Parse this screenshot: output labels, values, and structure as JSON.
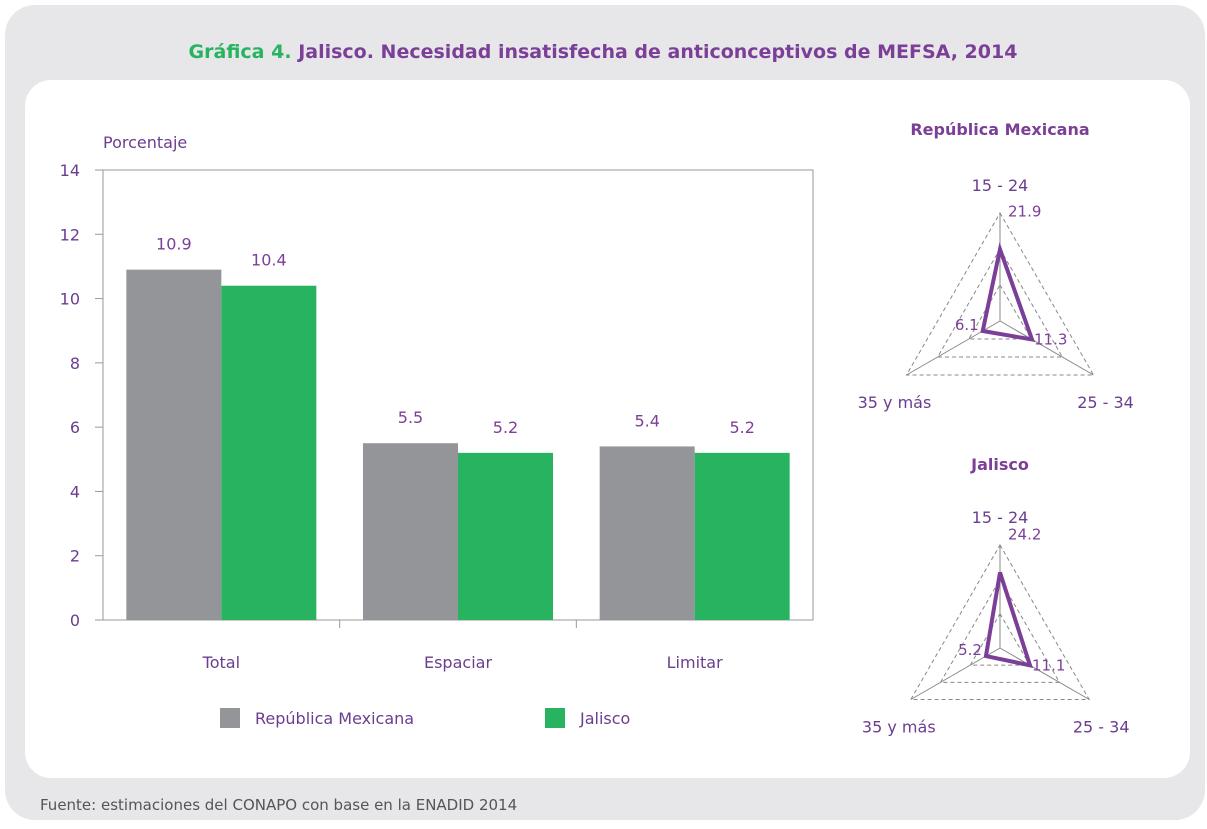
{
  "title": {
    "prefix": "Gráfica 4.",
    "text": "Jalisco. Necesidad insatisfecha de anticonceptivos de MEFSA, 2014"
  },
  "source": "Fuente: estimaciones del CONAPO con base en la ENADID 2014",
  "chart_data": [
    {
      "type": "bar",
      "ylabel": "Porcentaje",
      "categories": [
        "Total",
        "Espaciar",
        "Limitar"
      ],
      "series": [
        {
          "name": "República Mexicana",
          "color": "#939598",
          "values": [
            10.9,
            5.5,
            5.4
          ]
        },
        {
          "name": "Jalisco",
          "color": "#27b35f",
          "values": [
            10.4,
            5.2,
            5.2
          ]
        }
      ],
      "ylim": [
        0,
        14
      ],
      "yticks": [
        0,
        2,
        4,
        6,
        8,
        10,
        12,
        14
      ]
    },
    {
      "type": "radar",
      "title": "República Mexicana",
      "categories": [
        "15 - 24",
        "25 - 34",
        "35 y más"
      ],
      "series": [
        {
          "color": "#7b3f98",
          "values": [
            21.9,
            11.3,
            6.1
          ]
        }
      ],
      "rlim": [
        0,
        33
      ],
      "rticks": [
        11,
        22,
        33
      ]
    },
    {
      "type": "radar",
      "title": "Jalisco",
      "categories": [
        "15 - 24",
        "25 - 34",
        "35 y más"
      ],
      "series": [
        {
          "color": "#7b3f98",
          "values": [
            24.2,
            11.1,
            5.2
          ]
        }
      ],
      "rlim": [
        0,
        33
      ],
      "rticks": [
        11,
        22,
        33
      ]
    }
  ]
}
